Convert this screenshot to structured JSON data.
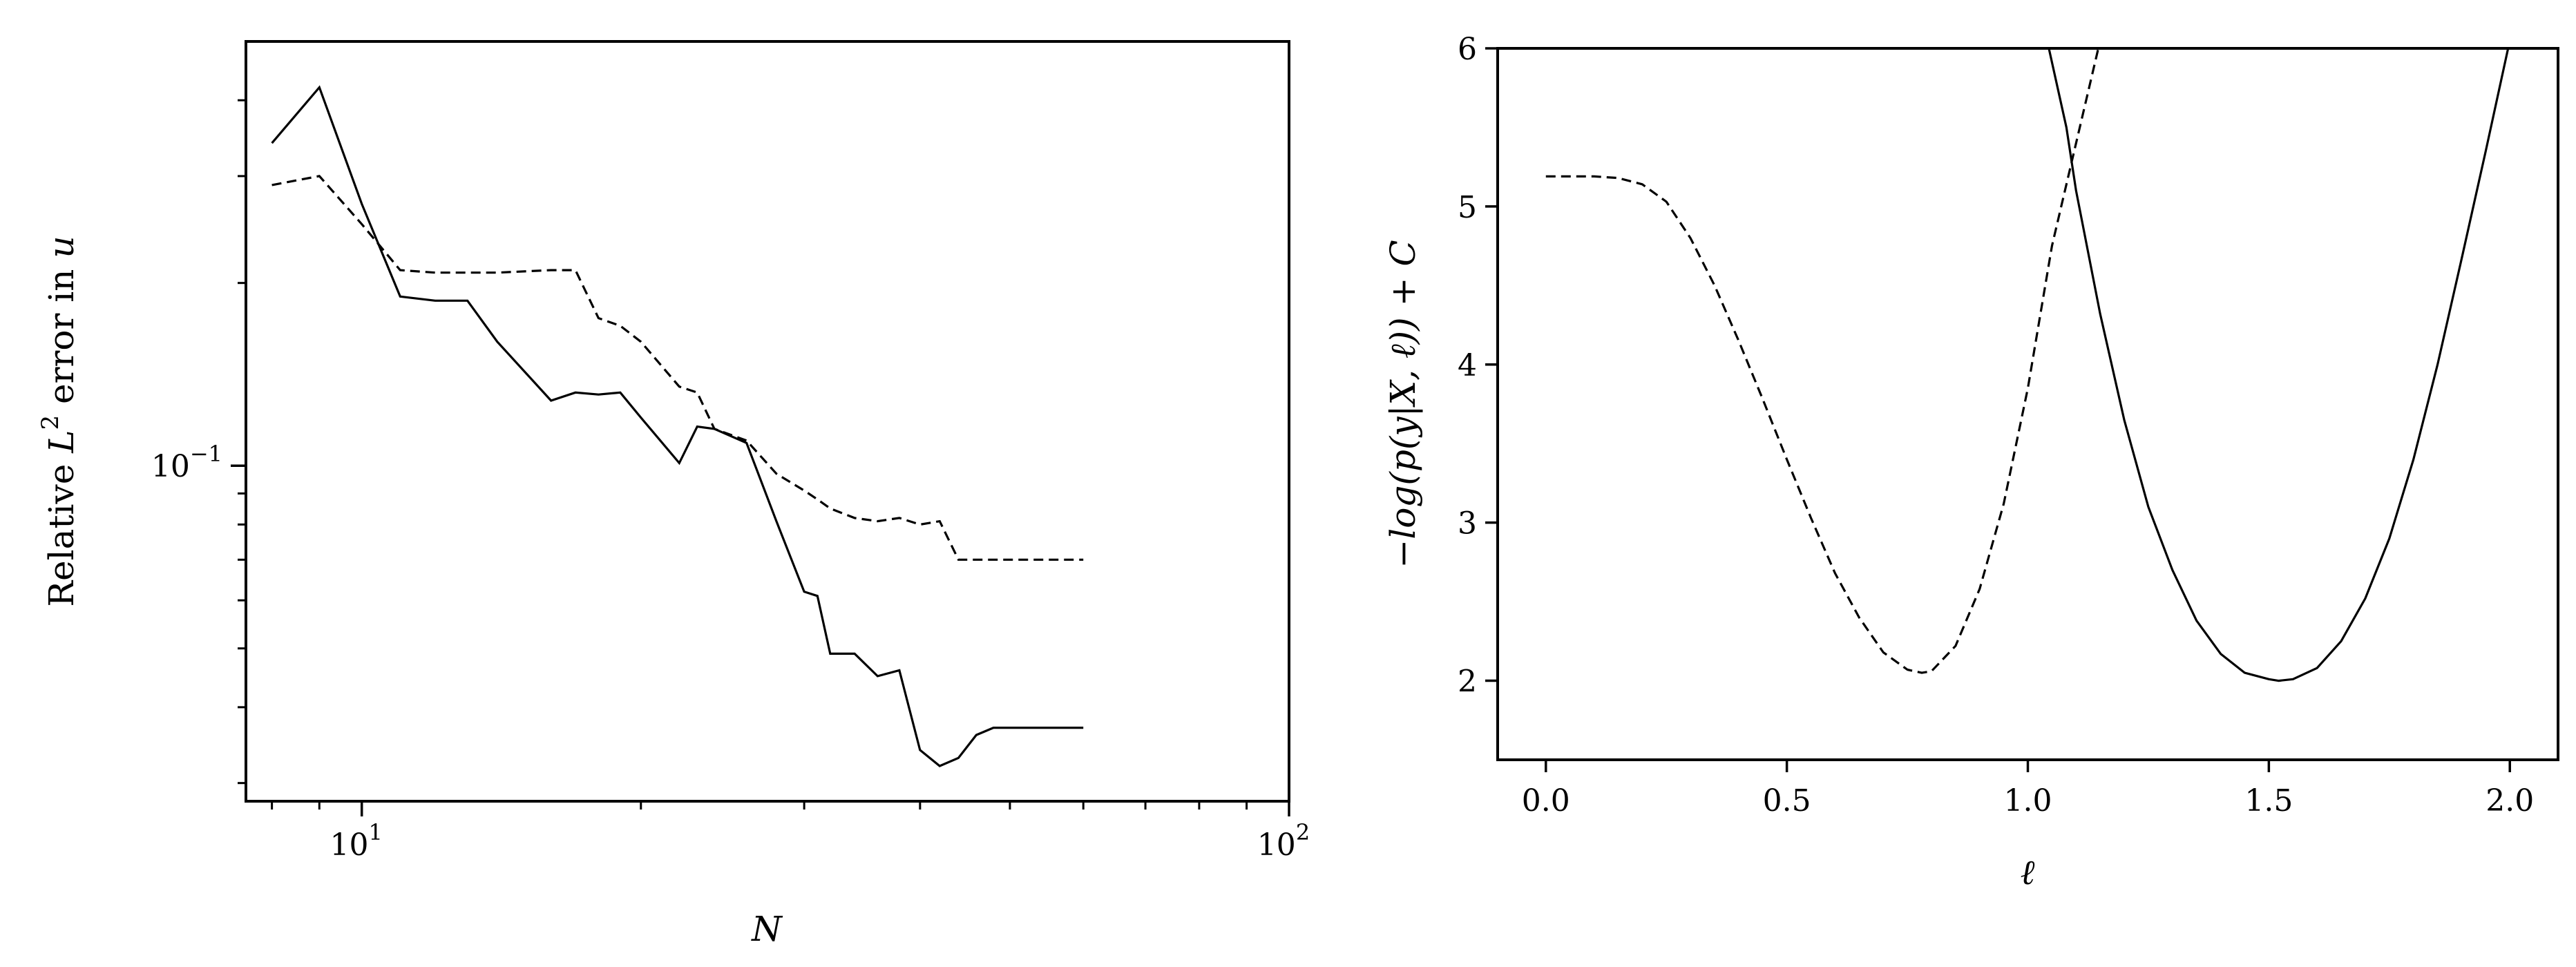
{
  "chart_data": [
    {
      "type": "line",
      "xscale": "log",
      "yscale": "log",
      "xlim": [
        7.5,
        100
      ],
      "ylim": [
        0.028,
        0.5
      ],
      "xticks": [
        {
          "value": 10,
          "base": "10",
          "exp": "1"
        },
        {
          "value": 100,
          "base": "10",
          "exp": "2"
        }
      ],
      "yticks": [
        {
          "value": 0.1,
          "base": "10",
          "exp": "−1"
        }
      ],
      "xlabel": "N",
      "ylabel": {
        "prefix": "Relative ",
        "var": "L",
        "sup": "2",
        "suffix": " error in ",
        "var2": "u"
      },
      "series": [
        {
          "style": "solid",
          "x": [
            8,
            9,
            10,
            11,
            12,
            13,
            14,
            16,
            17,
            18,
            19,
            20,
            22,
            23,
            24,
            26,
            28,
            30,
            31,
            32,
            34,
            36,
            38,
            40,
            42,
            44,
            46,
            48,
            54,
            60
          ],
          "y": [
            0.34,
            0.42,
            0.27,
            0.19,
            0.187,
            0.187,
            0.16,
            0.128,
            0.132,
            0.131,
            0.132,
            0.12,
            0.101,
            0.116,
            0.115,
            0.109,
            0.081,
            0.062,
            0.061,
            0.049,
            0.049,
            0.045,
            0.046,
            0.034,
            0.032,
            0.033,
            0.036,
            0.037,
            0.037,
            0.037
          ]
        },
        {
          "style": "dashed",
          "x": [
            8,
            9,
            10,
            11,
            12,
            13,
            14,
            16,
            17,
            18,
            19,
            20,
            22,
            23,
            24,
            26,
            28,
            30,
            31,
            32,
            34,
            36,
            38,
            40,
            42,
            44,
            46,
            48,
            54,
            60
          ],
          "y": [
            0.29,
            0.3,
            0.25,
            0.21,
            0.208,
            0.208,
            0.208,
            0.21,
            0.21,
            0.175,
            0.17,
            0.16,
            0.135,
            0.132,
            0.115,
            0.11,
            0.097,
            0.091,
            0.088,
            0.085,
            0.082,
            0.081,
            0.082,
            0.08,
            0.081,
            0.07,
            0.07,
            0.07,
            0.07,
            0.07
          ]
        }
      ]
    },
    {
      "type": "line",
      "xlim": [
        -0.1,
        2.1
      ],
      "ylim": [
        1.5,
        6
      ],
      "xticks": [
        "0.0",
        "0.5",
        "1.0",
        "1.5",
        "2.0"
      ],
      "yticks": [
        "2",
        "3",
        "4",
        "5",
        "6"
      ],
      "xlabel": "ℓ",
      "ylabel": "−log(p(y|X, ℓ)) + C",
      "series": [
        {
          "style": "dashed",
          "x": [
            0.0,
            0.1,
            0.15,
            0.2,
            0.25,
            0.3,
            0.35,
            0.4,
            0.45,
            0.5,
            0.55,
            0.6,
            0.65,
            0.7,
            0.75,
            0.78,
            0.8,
            0.85,
            0.9,
            0.95,
            1.0,
            1.05,
            1.1,
            1.15
          ],
          "y": [
            5.19,
            5.19,
            5.18,
            5.14,
            5.03,
            4.8,
            4.5,
            4.15,
            3.78,
            3.4,
            3.03,
            2.68,
            2.4,
            2.18,
            2.07,
            2.05,
            2.06,
            2.22,
            2.58,
            3.12,
            3.85,
            4.75,
            5.4,
            6.05
          ]
        },
        {
          "style": "solid",
          "x": [
            1.04,
            1.08,
            1.1,
            1.15,
            1.2,
            1.25,
            1.3,
            1.35,
            1.4,
            1.45,
            1.5,
            1.52,
            1.55,
            1.6,
            1.65,
            1.7,
            1.75,
            1.8,
            1.85,
            1.9,
            1.95,
            2.0
          ],
          "y": [
            6.05,
            5.5,
            5.1,
            4.32,
            3.65,
            3.1,
            2.7,
            2.38,
            2.17,
            2.05,
            2.01,
            2.0,
            2.01,
            2.08,
            2.25,
            2.52,
            2.9,
            3.4,
            4.0,
            4.67,
            5.35,
            6.05
          ]
        }
      ]
    }
  ]
}
